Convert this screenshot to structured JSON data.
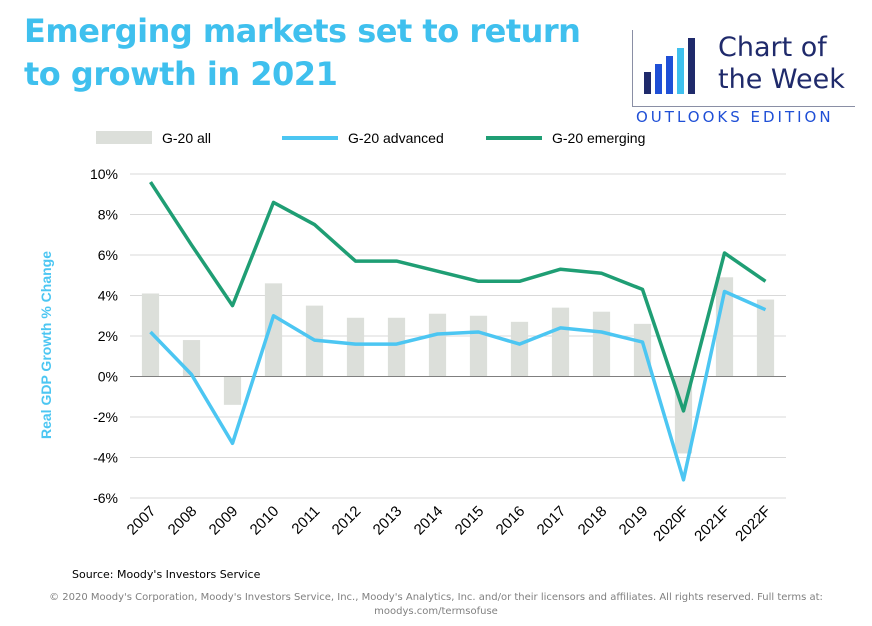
{
  "title": "Emerging markets set to return to growth in 2021",
  "logo": {
    "line1": "Chart of",
    "line2": "the Week",
    "subtitle": "OUTLOOKS EDITION"
  },
  "colors": {
    "title": "#3fc0ee",
    "bar": "#dcdfda",
    "advanced": "#4cc6f2",
    "emerging": "#1f9e74",
    "logo_navy": "#1f2a6b",
    "logo_blue": "#1f4fd6"
  },
  "source": "Source: Moody's Investors Service",
  "copyright": "© 2020 Moody's Corporation, Moody's Investors Service, Inc., Moody's Analytics, Inc. and/or their licensors and affiliates. All rights reserved. Full terms at: moodys.com/termsofuse",
  "chart_data": {
    "type": "bar",
    "title": "",
    "xlabel": "",
    "ylabel": "Real GDP Growth % Change",
    "ylim": [
      -6,
      10
    ],
    "yticks": [
      -6,
      -4,
      -2,
      0,
      2,
      4,
      6,
      8,
      10
    ],
    "ytick_labels": [
      "-6%",
      "-4%",
      "-2%",
      "0%",
      "2%",
      "4%",
      "6%",
      "8%",
      "10%"
    ],
    "grid": true,
    "legend_position": "top",
    "categories": [
      "2007",
      "2008",
      "2009",
      "2010",
      "2011",
      "2012",
      "2013",
      "2014",
      "2015",
      "2016",
      "2017",
      "2018",
      "2019",
      "2020F",
      "2021F",
      "2022F"
    ],
    "series": [
      {
        "name": "G-20 all",
        "type": "bar",
        "values": [
          4.1,
          1.8,
          -1.4,
          4.6,
          3.5,
          2.9,
          2.9,
          3.1,
          3.0,
          2.7,
          3.4,
          3.2,
          2.6,
          -3.8,
          4.9,
          3.8
        ]
      },
      {
        "name": "G-20 advanced",
        "type": "line",
        "values": [
          2.2,
          0.1,
          -3.3,
          3.0,
          1.8,
          1.6,
          1.6,
          2.1,
          2.2,
          1.6,
          2.4,
          2.2,
          1.7,
          -5.1,
          4.2,
          3.3
        ]
      },
      {
        "name": "G-20 emerging",
        "type": "line",
        "values": [
          9.6,
          6.5,
          3.5,
          8.6,
          7.5,
          5.7,
          5.7,
          5.2,
          4.7,
          4.7,
          5.3,
          5.1,
          4.3,
          -1.7,
          6.1,
          4.7
        ]
      }
    ]
  }
}
